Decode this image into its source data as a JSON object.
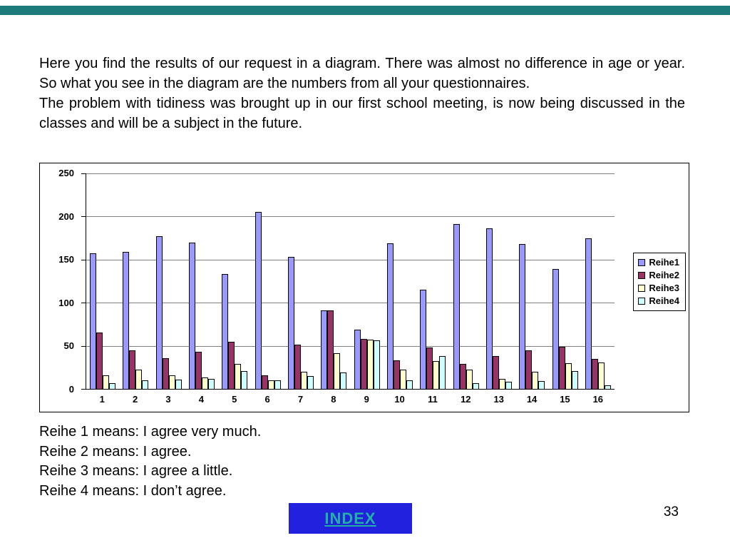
{
  "slide": {
    "top_bar_color": "#1E7B7B",
    "page_number": "33"
  },
  "intro": {
    "para1": "Here you find the results of our request in a diagram. There was almost no difference in age or year. So what you see in the diagram are the numbers from all your questionnaires.",
    "para2": "The problem with tidiness was brought up in our first school meeting, is now being discussed in the classes and will be a subject in the future."
  },
  "chart_data": {
    "type": "bar",
    "title": "",
    "xlabel": "",
    "ylabel": "",
    "categories": [
      "1",
      "2",
      "3",
      "4",
      "5",
      "6",
      "7",
      "8",
      "9",
      "10",
      "11",
      "12",
      "13",
      "14",
      "15",
      "16"
    ],
    "series": [
      {
        "name": "Reihe1",
        "color": "#9999FF",
        "values": [
          157,
          159,
          177,
          170,
          133,
          205,
          153,
          91,
          69,
          169,
          115,
          191,
          186,
          168,
          139,
          175
        ]
      },
      {
        "name": "Reihe2",
        "color": "#993366",
        "values": [
          65,
          45,
          36,
          43,
          55,
          16,
          51,
          91,
          58,
          33,
          48,
          29,
          38,
          45,
          49,
          35
        ]
      },
      {
        "name": "Reihe3",
        "color": "#FFFFCC",
        "values": [
          16,
          22,
          16,
          13,
          29,
          10,
          20,
          41,
          57,
          22,
          32,
          22,
          12,
          20,
          30,
          31
        ]
      },
      {
        "name": "Reihe4",
        "color": "#CCFFFF",
        "values": [
          7,
          10,
          11,
          12,
          21,
          10,
          15,
          19,
          56,
          10,
          38,
          7,
          8,
          9,
          21,
          4
        ]
      }
    ],
    "ylim": [
      0,
      250
    ],
    "yticks": [
      0,
      50,
      100,
      150,
      200,
      250
    ],
    "grid": true,
    "legend_position": "right"
  },
  "legend_notes": {
    "lines": [
      "Reihe 1 means: I agree very much.",
      "Reihe 2 means: I agree.",
      "Reihe 3 means: I agree a little.",
      "Reihe 4 means: I don’t agree."
    ]
  },
  "footer": {
    "index_label": "INDEX",
    "index_bg": "#2121DE",
    "index_text_color": "#21B2A6"
  }
}
